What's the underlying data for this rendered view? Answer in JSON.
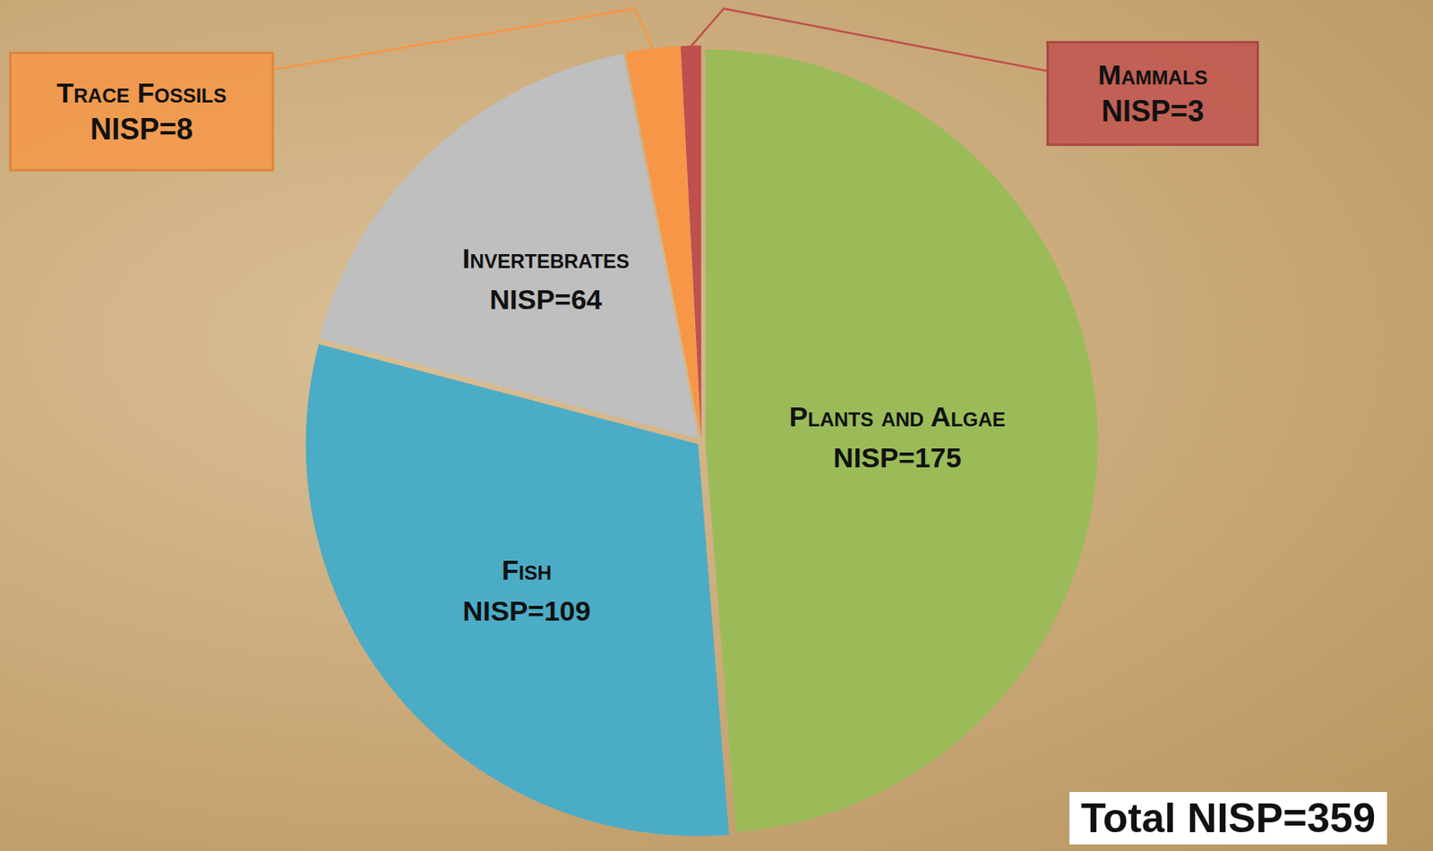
{
  "chart_data": {
    "type": "pie",
    "categories": [
      "Plants and Algae",
      "Fish",
      "Invertebrates",
      "Trace Fossils",
      "Mammals"
    ],
    "values": [
      175,
      109,
      64,
      8,
      3
    ],
    "value_labels": [
      "NISP=175",
      "NISP=109",
      "NISP=64",
      "NISP=8",
      "NISP=3"
    ],
    "colors": [
      "#9bbb59",
      "#4bacc6",
      "#bfbfbf",
      "#f79646",
      "#c0504d"
    ],
    "data_labels": true,
    "annotations": [
      "Total NISP=359"
    ]
  }
}
